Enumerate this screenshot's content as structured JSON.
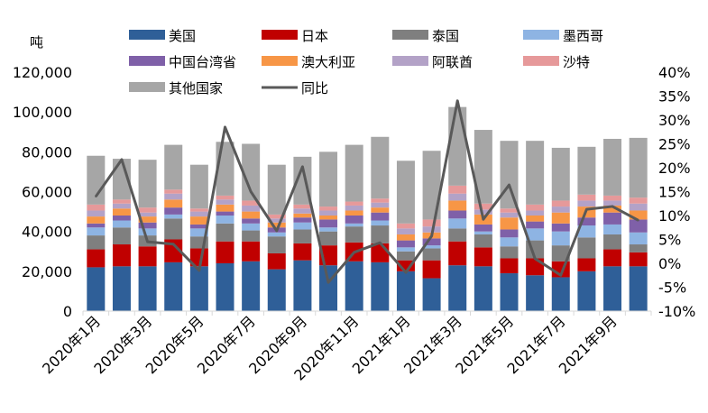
{
  "chart_data": {
    "type": "bar",
    "stacked": true,
    "ylabel": "吨",
    "ylim": [
      0,
      120000
    ],
    "y2lim": [
      -10,
      40
    ],
    "yticks": [
      "0",
      "20,000",
      "40,000",
      "60,000",
      "80,000",
      "100,000",
      "120,000"
    ],
    "y2ticks": [
      "-10%",
      "-5%",
      "0%",
      "5%",
      "10%",
      "15%",
      "20%",
      "25%",
      "30%",
      "35%",
      "40%"
    ],
    "categories": [
      "2020年1月",
      "2020年2月",
      "2020年3月",
      "2020年4月",
      "2020年5月",
      "2020年6月",
      "2020年7月",
      "2020年8月",
      "2020年9月",
      "2020年10月",
      "2020年11月",
      "2020年12月",
      "2021年1月",
      "2021年2月",
      "2021年3月",
      "2021年4月",
      "2021年5月",
      "2021年6月",
      "2021年7月",
      "2021年8月",
      "2021年9月",
      "2021年10月"
    ],
    "xtick_labels": [
      "2020年1月",
      "2020年3月",
      "2020年5月",
      "2020年7月",
      "2020年9月",
      "2020年11月",
      "2021年1月",
      "2021年3月",
      "2021年5月",
      "2021年7月",
      "2021年9月"
    ],
    "series": [
      {
        "name": "美国",
        "color": "#2F5F98",
        "values": [
          22000,
          22500,
          22500,
          24500,
          22500,
          24000,
          25000,
          21000,
          25500,
          23000,
          25000,
          24500,
          20000,
          16500,
          23000,
          22500,
          19000,
          18000,
          17000,
          20000,
          22500,
          22500
        ]
      },
      {
        "name": "日本",
        "color": "#C00000",
        "values": [
          9000,
          11000,
          10000,
          11500,
          9000,
          11000,
          10000,
          8000,
          8500,
          10000,
          9500,
          9500,
          5500,
          9000,
          12000,
          9500,
          7500,
          8500,
          8000,
          6500,
          8500,
          7000
        ]
      },
      {
        "name": "泰国",
        "color": "#7F7F7F",
        "values": [
          7000,
          8500,
          5500,
          10500,
          6000,
          9000,
          5500,
          8500,
          7000,
          7000,
          8000,
          9000,
          4500,
          6000,
          6500,
          6500,
          6000,
          9000,
          8000,
          10500,
          7500,
          4000
        ]
      },
      {
        "name": "墨西哥",
        "color": "#8EB4E3",
        "values": [
          4000,
          3500,
          3500,
          2000,
          4000,
          4000,
          3500,
          2000,
          3500,
          2000,
          1500,
          2500,
          2000,
          1500,
          5000,
          1500,
          4500,
          6000,
          7000,
          6000,
          5000,
          6000
        ]
      },
      {
        "name": "中国台湾省",
        "color": "#7F60A8",
        "values": [
          2000,
          2500,
          3000,
          3500,
          2000,
          2000,
          2500,
          2500,
          2500,
          4000,
          4000,
          4000,
          3500,
          3500,
          4000,
          3500,
          4000,
          3500,
          4000,
          4000,
          6000,
          6500
        ]
      },
      {
        "name": "澳大利亚",
        "color": "#F79646",
        "values": [
          3500,
          3500,
          3000,
          4000,
          4000,
          3500,
          3500,
          2500,
          2000,
          2000,
          2500,
          2500,
          3000,
          3000,
          5000,
          5000,
          6000,
          3000,
          5500,
          5500,
          3500,
          4500
        ]
      },
      {
        "name": "阿联酋",
        "color": "#B3A2C7",
        "values": [
          3000,
          2500,
          2000,
          3000,
          2500,
          2500,
          3000,
          2000,
          2500,
          2500,
          2500,
          2500,
          3000,
          3000,
          3500,
          2500,
          2500,
          2500,
          3000,
          3000,
          2500,
          3500
        ]
      },
      {
        "name": "沙特",
        "color": "#E6999A",
        "values": [
          3000,
          2000,
          2500,
          2000,
          1500,
          2000,
          2500,
          2000,
          2000,
          2000,
          2000,
          2000,
          2500,
          3500,
          4000,
          3000,
          2000,
          3000,
          3000,
          3000,
          2500,
          3000
        ]
      },
      {
        "name": "其他国家",
        "color": "#A6A6A6",
        "values": [
          24500,
          20500,
          24000,
          22500,
          22000,
          27000,
          28500,
          25000,
          24000,
          27500,
          28500,
          31000,
          31500,
          34500,
          39500,
          37000,
          34000,
          32000,
          26500,
          24000,
          28500,
          30000
        ]
      }
    ],
    "line": {
      "name": "同比",
      "color": "#595959",
      "axis": "right",
      "values": [
        14,
        21.7,
        4.5,
        4,
        -1.5,
        28.5,
        15,
        6.8,
        20.2,
        -4,
        2.3,
        4.3,
        -1.9,
        5.7,
        34,
        9.2,
        16.4,
        1,
        -2.5,
        11.3,
        11.9,
        9
      ]
    },
    "legend": "top"
  }
}
